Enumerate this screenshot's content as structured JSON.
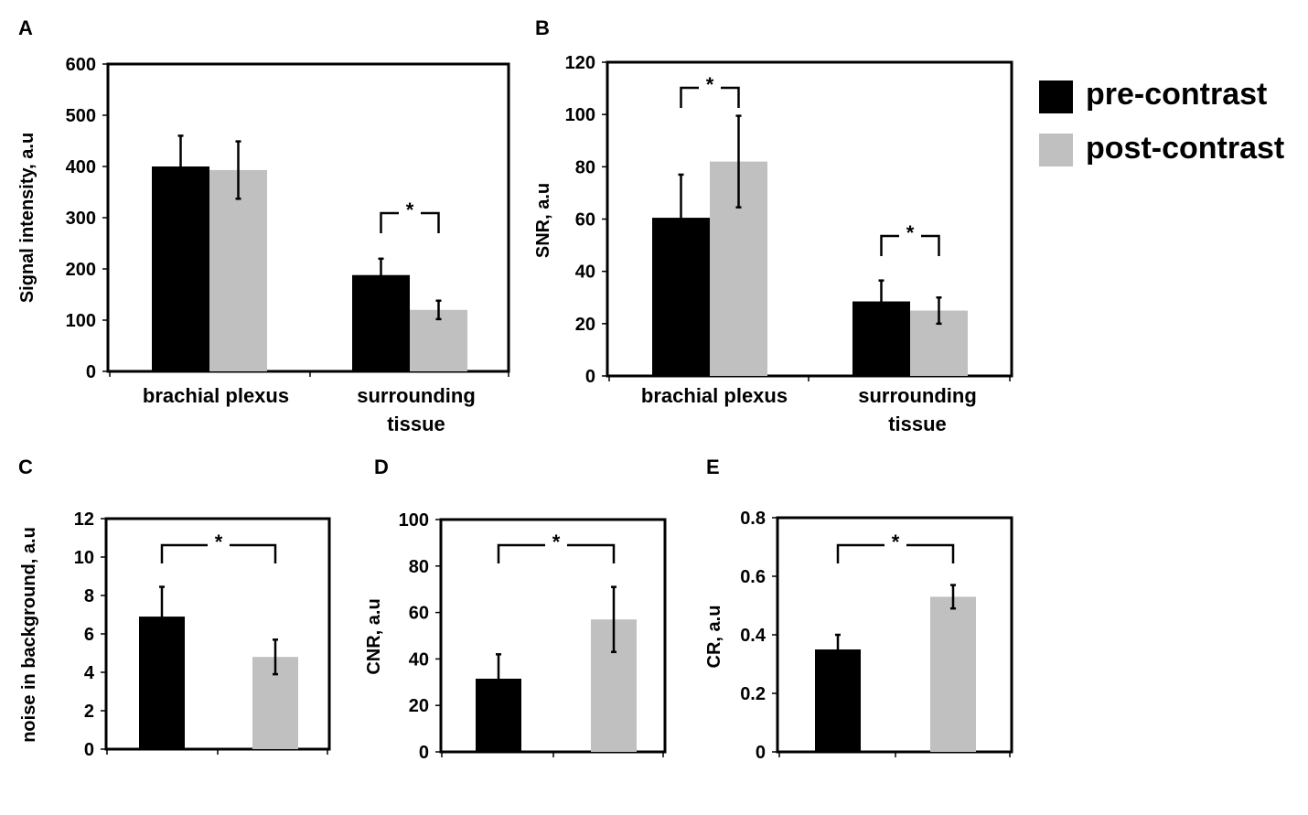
{
  "colors": {
    "pre": "#000000",
    "post": "#c0c0c0"
  },
  "legend": [
    {
      "label": "pre-contrast",
      "color": "#000000"
    },
    {
      "label": "post-contrast",
      "color": "#c0c0c0"
    }
  ],
  "chart_data": [
    {
      "panel": "A",
      "type": "bar",
      "ylabel": "Signal intensity, a.u",
      "ylim": [
        0,
        600
      ],
      "yticks": [
        0,
        100,
        200,
        300,
        400,
        500,
        600
      ],
      "categories": [
        [
          "brachial plexus"
        ],
        [
          "surrounding",
          "tissue"
        ]
      ],
      "series": [
        {
          "name": "pre-contrast",
          "values": [
            400,
            188
          ],
          "errors": [
            60,
            32
          ]
        },
        {
          "name": "post-contrast",
          "values": [
            393,
            120
          ],
          "errors": [
            56,
            18
          ]
        }
      ],
      "significance": [
        {
          "category": 1,
          "label": "*"
        }
      ]
    },
    {
      "panel": "B",
      "type": "bar",
      "ylabel": "SNR, a.u",
      "ylim": [
        0,
        120
      ],
      "yticks": [
        0,
        20,
        40,
        60,
        80,
        100,
        120
      ],
      "categories": [
        [
          "brachial plexus"
        ],
        [
          "surrounding",
          "tissue"
        ]
      ],
      "series": [
        {
          "name": "pre-contrast",
          "values": [
            60.5,
            28.5
          ],
          "errors": [
            16.5,
            8
          ]
        },
        {
          "name": "post-contrast",
          "values": [
            82,
            25
          ],
          "errors": [
            17.5,
            5
          ]
        }
      ],
      "significance": [
        {
          "category": 0,
          "label": "*"
        },
        {
          "category": 1,
          "label": "*"
        }
      ]
    },
    {
      "panel": "C",
      "type": "bar",
      "ylabel": "noise in background, a.u",
      "ylim": [
        0,
        12
      ],
      "yticks": [
        0,
        2,
        4,
        6,
        8,
        10,
        12
      ],
      "categories": [
        [
          "pre-contrast"
        ],
        [
          "post-contrast"
        ]
      ],
      "show_category_labels": false,
      "values": [
        6.9,
        4.8
      ],
      "errors": [
        1.55,
        0.9
      ],
      "significance": [
        {
          "between": [
            0,
            1
          ],
          "label": "*"
        }
      ]
    },
    {
      "panel": "D",
      "type": "bar",
      "ylabel": "CNR, a.u",
      "ylim": [
        0,
        100
      ],
      "yticks": [
        0,
        20,
        40,
        60,
        80,
        100
      ],
      "categories": [
        [
          "pre-contrast"
        ],
        [
          "post-contrast"
        ]
      ],
      "show_category_labels": false,
      "values": [
        31.5,
        57
      ],
      "errors": [
        10.5,
        14
      ],
      "significance": [
        {
          "between": [
            0,
            1
          ],
          "label": "*"
        }
      ]
    },
    {
      "panel": "E",
      "type": "bar",
      "ylabel": "CR, a.u",
      "ylim": [
        0,
        0.8
      ],
      "yticks": [
        "0",
        "0.2",
        "0.4",
        "0.6",
        "0.8"
      ],
      "categories": [
        [
          "pre-contrast"
        ],
        [
          "post-contrast"
        ]
      ],
      "show_category_labels": false,
      "values": [
        0.35,
        0.53
      ],
      "errors": [
        0.05,
        0.04
      ],
      "significance": [
        {
          "between": [
            0,
            1
          ],
          "label": "*"
        }
      ]
    }
  ]
}
